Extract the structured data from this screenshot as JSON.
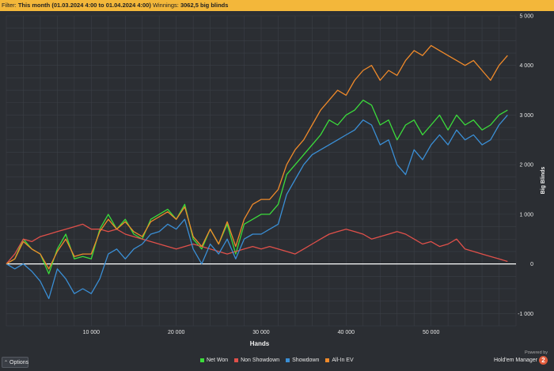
{
  "filter": {
    "prefix": "Filter:",
    "value": "This month (01.03.2024 4:00 to 01.04.2024 4:00)",
    "winnings_label": "Winnings:",
    "winnings_value": "3062,5 big blinds"
  },
  "options_button": {
    "label": "Options",
    "icon": "chevron-up-icon"
  },
  "branding": {
    "powered_by": "Powered by",
    "name": "Hold'em Manager",
    "logo_text": "2"
  },
  "colors": {
    "background": "#2b2e33",
    "grid": "#3b3f46",
    "zero_line": "#ffffff",
    "filter_bar": "#f3b73a",
    "net_won": "#3bdc3b",
    "non_showdown": "#e0504a",
    "showdown": "#3a8fd6",
    "all_in_ev": "#f08a2a"
  },
  "chart_data": {
    "type": "line",
    "xlabel": "Hands",
    "ylabel": "Big Blinds",
    "xlim": [
      0,
      60000
    ],
    "ylim": [
      -1250,
      5000
    ],
    "x_ticks": [
      10000,
      20000,
      30000,
      40000,
      50000
    ],
    "x_tick_labels": [
      "10 000",
      "20 000",
      "30 000",
      "40 000",
      "50 000"
    ],
    "y_ticks": [
      -1000,
      0,
      1000,
      2000,
      3000,
      4000,
      5000
    ],
    "y_tick_labels": [
      "-1 000",
      "0",
      "1 000",
      "2 000",
      "3 000",
      "4 000",
      "5 000"
    ],
    "grid": true,
    "legend_position": "bottom",
    "series": [
      {
        "name": "Net Won",
        "color_key": "net_won",
        "x": [
          0,
          1000,
          2000,
          3000,
          4000,
          5000,
          6000,
          7000,
          8000,
          9000,
          10000,
          11000,
          12000,
          13000,
          14000,
          15000,
          16000,
          17000,
          18000,
          19000,
          20000,
          21000,
          22000,
          23000,
          24000,
          25000,
          26000,
          27000,
          28000,
          29000,
          30000,
          31000,
          32000,
          33000,
          34000,
          35000,
          36000,
          37000,
          38000,
          39000,
          40000,
          41000,
          42000,
          43000,
          44000,
          45000,
          46000,
          47000,
          48000,
          49000,
          50000,
          51000,
          52000,
          53000,
          54000,
          55000,
          56000,
          57000,
          58000,
          59000
        ],
        "values": [
          0,
          100,
          500,
          300,
          200,
          -200,
          300,
          600,
          100,
          150,
          100,
          700,
          1000,
          700,
          900,
          600,
          500,
          900,
          1000,
          1100,
          900,
          1200,
          500,
          300,
          700,
          400,
          800,
          200,
          800,
          900,
          1000,
          1000,
          1200,
          1800,
          2000,
          2200,
          2400,
          2600,
          2900,
          2800,
          3000,
          3100,
          3300,
          3200,
          2800,
          2900,
          2500,
          2800,
          2900,
          2600,
          2800,
          3000,
          2700,
          3000,
          2800,
          2900,
          2700,
          2800,
          3000,
          3100
        ]
      },
      {
        "name": "Non Showdown",
        "color_key": "non_showdown",
        "x": [
          0,
          1000,
          2000,
          3000,
          4000,
          5000,
          6000,
          7000,
          8000,
          9000,
          10000,
          11000,
          12000,
          13000,
          14000,
          15000,
          16000,
          17000,
          18000,
          19000,
          20000,
          21000,
          22000,
          23000,
          24000,
          25000,
          26000,
          27000,
          28000,
          29000,
          30000,
          31000,
          32000,
          33000,
          34000,
          35000,
          36000,
          37000,
          38000,
          39000,
          40000,
          41000,
          42000,
          43000,
          44000,
          45000,
          46000,
          47000,
          48000,
          49000,
          50000,
          51000,
          52000,
          53000,
          54000,
          55000,
          56000,
          57000,
          58000,
          59000
        ],
        "values": [
          0,
          200,
          500,
          450,
          550,
          600,
          650,
          700,
          750,
          800,
          700,
          700,
          650,
          700,
          600,
          550,
          500,
          450,
          400,
          350,
          300,
          350,
          400,
          350,
          300,
          250,
          200,
          250,
          300,
          350,
          300,
          350,
          300,
          250,
          200,
          300,
          400,
          500,
          600,
          650,
          700,
          650,
          600,
          500,
          550,
          600,
          650,
          600,
          500,
          400,
          450,
          350,
          400,
          500,
          300,
          250,
          200,
          150,
          100,
          50
        ]
      },
      {
        "name": "Showdown",
        "color_key": "showdown",
        "x": [
          0,
          1000,
          2000,
          3000,
          4000,
          5000,
          6000,
          7000,
          8000,
          9000,
          10000,
          11000,
          12000,
          13000,
          14000,
          15000,
          16000,
          17000,
          18000,
          19000,
          20000,
          21000,
          22000,
          23000,
          24000,
          25000,
          26000,
          27000,
          28000,
          29000,
          30000,
          31000,
          32000,
          33000,
          34000,
          35000,
          36000,
          37000,
          38000,
          39000,
          40000,
          41000,
          42000,
          43000,
          44000,
          45000,
          46000,
          47000,
          48000,
          49000,
          50000,
          51000,
          52000,
          53000,
          54000,
          55000,
          56000,
          57000,
          58000,
          59000
        ],
        "values": [
          0,
          -100,
          0,
          -150,
          -350,
          -700,
          -100,
          -300,
          -600,
          -500,
          -600,
          -300,
          200,
          300,
          100,
          300,
          400,
          600,
          650,
          800,
          700,
          900,
          300,
          0,
          400,
          200,
          500,
          100,
          500,
          600,
          600,
          700,
          800,
          1400,
          1700,
          2000,
          2200,
          2300,
          2400,
          2500,
          2600,
          2700,
          2900,
          2800,
          2400,
          2500,
          2000,
          1800,
          2300,
          2100,
          2400,
          2600,
          2400,
          2700,
          2500,
          2600,
          2400,
          2500,
          2800,
          3000
        ]
      },
      {
        "name": "All-In EV",
        "color_key": "all_in_ev",
        "x": [
          0,
          1000,
          2000,
          3000,
          4000,
          5000,
          6000,
          7000,
          8000,
          9000,
          10000,
          11000,
          12000,
          13000,
          14000,
          15000,
          16000,
          17000,
          18000,
          19000,
          20000,
          21000,
          22000,
          23000,
          24000,
          25000,
          26000,
          27000,
          28000,
          29000,
          30000,
          31000,
          32000,
          33000,
          34000,
          35000,
          36000,
          37000,
          38000,
          39000,
          40000,
          41000,
          42000,
          43000,
          44000,
          45000,
          46000,
          47000,
          48000,
          49000,
          50000,
          51000,
          52000,
          53000,
          54000,
          55000,
          56000,
          57000,
          58000,
          59000
        ],
        "values": [
          0,
          100,
          450,
          300,
          200,
          -100,
          250,
          500,
          150,
          200,
          200,
          650,
          900,
          700,
          850,
          650,
          550,
          850,
          950,
          1050,
          900,
          1150,
          550,
          350,
          700,
          400,
          850,
          350,
          900,
          1200,
          1300,
          1300,
          1500,
          2000,
          2300,
          2500,
          2800,
          3100,
          3300,
          3500,
          3400,
          3700,
          3900,
          4000,
          3700,
          3900,
          3800,
          4100,
          4300,
          4200,
          4400,
          4300,
          4200,
          4100,
          4000,
          4100,
          3900,
          3700,
          4000,
          4200
        ]
      }
    ]
  }
}
